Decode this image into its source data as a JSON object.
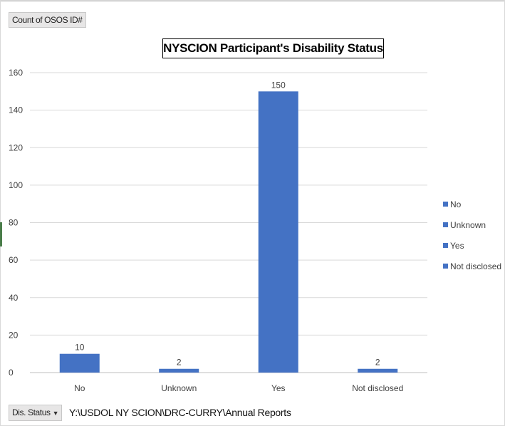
{
  "pivot": {
    "value_field": "Count of OSOS ID#",
    "axis_field": "Dis. Status",
    "axis_field_arrow": "▼"
  },
  "file_path": "Y:\\USDOL NY SCION\\DRC-CURRY\\Annual Reports",
  "colors": {
    "bar": "#4472c4",
    "grid": "#d9d9d9",
    "text": "#404040"
  },
  "chart_data": {
    "type": "bar",
    "title": "NYSCION Participant's Disability Status",
    "categories": [
      "No",
      "Unknown",
      "Yes",
      "Not disclosed"
    ],
    "values": [
      10,
      2,
      150,
      2
    ],
    "data_labels": [
      "10",
      "2",
      "150",
      "2"
    ],
    "ylim": [
      0,
      160
    ],
    "yticks": [
      0,
      20,
      40,
      60,
      80,
      100,
      120,
      140,
      160
    ],
    "grid": true,
    "legend": {
      "placement": "right",
      "entries": [
        "No",
        "Unknown",
        "Yes",
        "Not disclosed"
      ]
    }
  }
}
